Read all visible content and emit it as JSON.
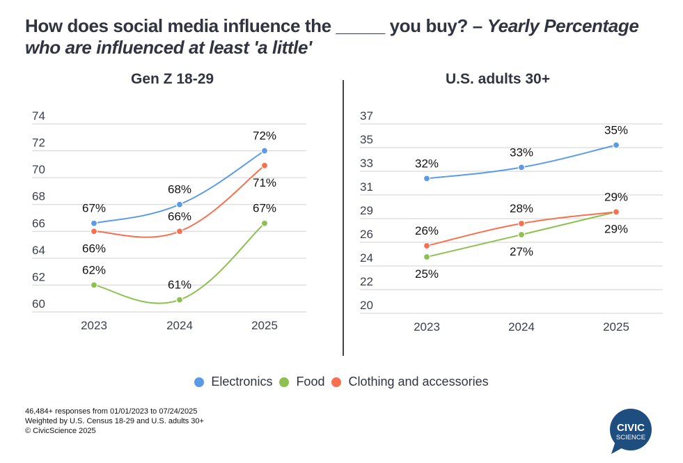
{
  "title": {
    "main": "How does social media influence the _____ you buy? – ",
    "italic": "Yearly Percentage who are influenced at least 'a little'"
  },
  "colors": {
    "electronics": "#5b9be6",
    "food": "#8cc152",
    "clothing": "#f8704f",
    "grid": "#d0d0d0",
    "logo": "#1e4e80"
  },
  "legend": [
    {
      "label": "Electronics",
      "color": "#5b9be6"
    },
    {
      "label": "Food",
      "color": "#8cc152"
    },
    {
      "label": "Clothing and accessories",
      "color": "#f8704f"
    }
  ],
  "footnote": [
    "46,484+ responses from 01/01/2023 to 07/24/2025",
    "Weighted by U.S. Census 18-29 and U.S. adults 30+",
    "© CivicScience 2025"
  ],
  "logo": {
    "line1": "CIVIC",
    "line2": "SCIENCE"
  },
  "chart_data": [
    {
      "type": "line",
      "title": "Gen Z 18-29",
      "categories": [
        "2023",
        "2024",
        "2025"
      ],
      "ylim": [
        60,
        74
      ],
      "yticks": [
        60,
        62,
        64,
        66,
        68,
        70,
        72,
        74
      ],
      "ytick_labels": [
        "60",
        "62",
        "64",
        "66",
        "68",
        "70",
        "72",
        "74"
      ],
      "grid": true,
      "series": [
        {
          "name": "Electronics",
          "key": "electronics",
          "values": [
            66.6,
            68,
            72
          ],
          "labels": [
            "67%",
            "68%",
            "72%"
          ],
          "label_pos": [
            "above",
            "above",
            "above"
          ]
        },
        {
          "name": "Food",
          "key": "food",
          "values": [
            62,
            60.9,
            66.6
          ],
          "labels": [
            "62%",
            "61%",
            "67%"
          ],
          "label_pos": [
            "above",
            "above",
            "above"
          ]
        },
        {
          "name": "Clothing and accessories",
          "key": "clothing",
          "values": [
            66,
            66,
            70.9
          ],
          "labels": [
            "66%",
            "66%",
            "71%"
          ],
          "label_pos": [
            "below",
            "above",
            "below"
          ]
        }
      ]
    },
    {
      "type": "line",
      "title": "U.S. adults 30+",
      "categories": [
        "2023",
        "2024",
        "2025"
      ],
      "ylim": [
        20,
        37
      ],
      "yticks": [
        20,
        22.125,
        24.25,
        26.375,
        28.5,
        30.625,
        32.75,
        34.875,
        37
      ],
      "ytick_labels": [
        "20",
        "22",
        "24",
        "26",
        "29",
        "31",
        "33",
        "35",
        "37"
      ],
      "grid": true,
      "series": [
        {
          "name": "Electronics",
          "key": "electronics",
          "values": [
            32.1,
            33.1,
            35.1
          ],
          "labels": [
            "32%",
            "33%",
            "35%"
          ],
          "label_pos": [
            "above",
            "above",
            "above"
          ]
        },
        {
          "name": "Food",
          "key": "food",
          "values": [
            25.06,
            27.06,
            29.1
          ],
          "labels": [
            "25%",
            "27%",
            "29%"
          ],
          "label_pos": [
            "below",
            "below",
            "below"
          ]
        },
        {
          "name": "Clothing and accessories",
          "key": "clothing",
          "values": [
            26.06,
            28.06,
            29.1
          ],
          "labels": [
            "26%",
            "28%",
            "29%"
          ],
          "label_pos": [
            "above",
            "above",
            "above"
          ]
        }
      ]
    }
  ]
}
